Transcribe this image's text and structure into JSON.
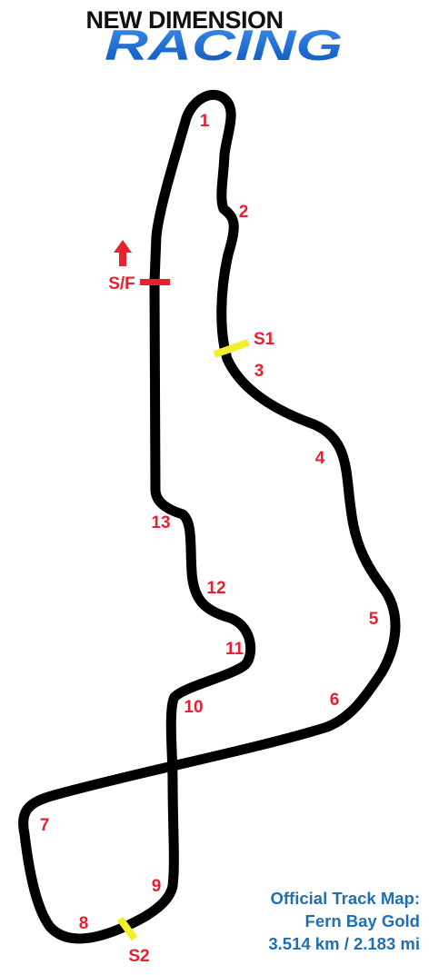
{
  "logo": {
    "top_line": "NEW DIMENSION",
    "bottom_line": "RACING"
  },
  "colors": {
    "track": "#000000",
    "corner_labels": "#e8202f",
    "start_finish": "#e8202f",
    "sector_markers": "#f2ee2a",
    "info_text": "#1f6fb2",
    "logo_racing": "#1d6fd1",
    "logo_top": "#111111"
  },
  "markers": {
    "start_finish": "S/F",
    "sector1": "S1",
    "sector2": "S2",
    "direction_icon": "arrow-up-icon"
  },
  "corners": [
    "1",
    "2",
    "3",
    "4",
    "5",
    "6",
    "7",
    "8",
    "9",
    "10",
    "11",
    "12",
    "13"
  ],
  "info": {
    "line1": "Official Track Map:",
    "line2": "Fern Bay Gold",
    "line3": "3.514 km / 2.183 mi"
  }
}
